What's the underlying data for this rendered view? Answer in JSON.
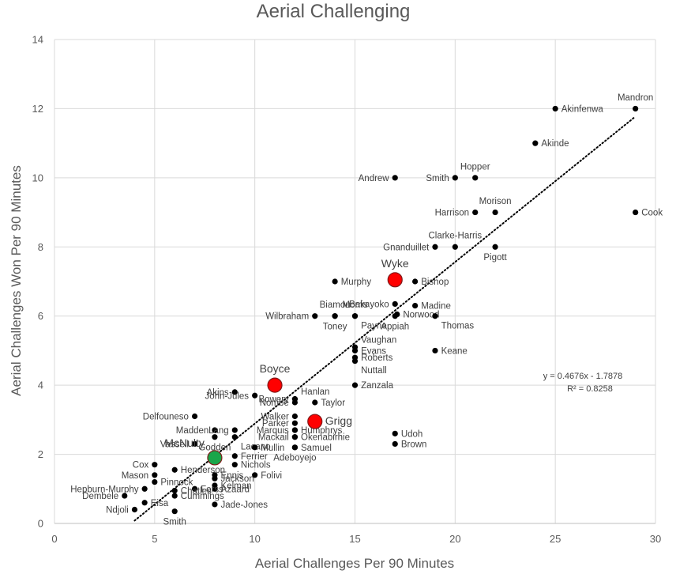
{
  "chart_data": {
    "type": "scatter",
    "title": "Aerial Challenging",
    "xlabel": "Aerial Challenges Per 90 Minutes",
    "ylabel": "Aerial Challenges Won Per 90 Minutes",
    "xlim": [
      0,
      30
    ],
    "ylim": [
      0,
      14
    ],
    "xticks": [
      "0",
      "5",
      "10",
      "15",
      "20",
      "25",
      "30"
    ],
    "yticks": [
      "0",
      "2",
      "4",
      "6",
      "8",
      "10",
      "12",
      "14"
    ],
    "grid": true,
    "trendline": {
      "slope": 0.4676,
      "intercept": -1.7878,
      "x_range": [
        4,
        29
      ],
      "style": "dotted"
    },
    "equation_text": "y = 0.4676x - 1.7878",
    "r2_text": "R² = 0.8258",
    "colors": {
      "point": "#000000",
      "highlight_red": "#ff0000",
      "highlight_green": "#1aa64a",
      "grid": "#d9d9d9",
      "text": "#595959"
    },
    "points": [
      {
        "name": "Mandron",
        "x": 29,
        "y": 12,
        "label": "above"
      },
      {
        "name": "Akinfenwa",
        "x": 25,
        "y": 12,
        "label": "right"
      },
      {
        "name": "Akinde",
        "x": 24,
        "y": 11,
        "label": "right"
      },
      {
        "name": "Hopper",
        "x": 21,
        "y": 10,
        "label": "above"
      },
      {
        "name": "Smith",
        "x": 20,
        "y": 10,
        "label": "left"
      },
      {
        "name": "Andrew",
        "x": 17,
        "y": 10,
        "label": "left"
      },
      {
        "name": "Morison",
        "x": 22,
        "y": 9,
        "label": "above"
      },
      {
        "name": "Harrison",
        "x": 21,
        "y": 9,
        "label": "left"
      },
      {
        "name": "Cook",
        "x": 29,
        "y": 9,
        "label": "right"
      },
      {
        "name": "Clarke-Harris",
        "x": 20,
        "y": 8,
        "label": "above"
      },
      {
        "name": "Gnanduillet",
        "x": 19,
        "y": 8,
        "label": "left"
      },
      {
        "name": "Pigott",
        "x": 22,
        "y": 8,
        "label": "below"
      },
      {
        "name": "Murphy",
        "x": 14,
        "y": 7,
        "label": "right"
      },
      {
        "name": "Bishop",
        "x": 18,
        "y": 7,
        "label": "right"
      },
      {
        "name": "Bakayoko",
        "x": 17,
        "y": 6.35,
        "label": "left"
      },
      {
        "name": "Madine",
        "x": 18,
        "y": 6.3,
        "label": "right"
      },
      {
        "name": "Norwood",
        "x": 17.1,
        "y": 6.05,
        "label": "right"
      },
      {
        "name": "Appiah",
        "x": 17,
        "y": 6.0,
        "label": "below"
      },
      {
        "name": "Thomas",
        "x": 19,
        "y": 6.0,
        "label": "below-right"
      },
      {
        "name": "Biamou",
        "x": 14,
        "y": 6.0,
        "label": "above"
      },
      {
        "name": "Morris",
        "x": 15,
        "y": 6.0,
        "label": "above"
      },
      {
        "name": "Wilbraham",
        "x": 13,
        "y": 6.0,
        "label": "left"
      },
      {
        "name": "Toney",
        "x": 14,
        "y": 6.0,
        "label": "below"
      },
      {
        "name": "Payne",
        "x": 15,
        "y": 6.0,
        "label": "below-right"
      },
      {
        "name": "Vaughan",
        "x": 15,
        "y": 5.1,
        "label": "above-right"
      },
      {
        "name": "Evans",
        "x": 15,
        "y": 5.0,
        "label": "right"
      },
      {
        "name": "Roberts",
        "x": 15,
        "y": 4.8,
        "label": "right"
      },
      {
        "name": "Nuttall",
        "x": 15,
        "y": 4.7,
        "label": "below-right"
      },
      {
        "name": "Keane",
        "x": 19,
        "y": 5.0,
        "label": "right"
      },
      {
        "name": "Zanzala",
        "x": 15,
        "y": 4.0,
        "label": "right"
      },
      {
        "name": "Akins",
        "x": 9,
        "y": 3.8,
        "label": "left"
      },
      {
        "name": "John-Jules",
        "x": 10,
        "y": 3.7,
        "label": "left"
      },
      {
        "name": "Bowery",
        "x": 12,
        "y": 3.6,
        "label": "left"
      },
      {
        "name": "Hanlan",
        "x": 12,
        "y": 3.6,
        "label": "above-right"
      },
      {
        "name": "Nombe",
        "x": 12,
        "y": 3.5,
        "label": "left"
      },
      {
        "name": "Taylor",
        "x": 13,
        "y": 3.5,
        "label": "right"
      },
      {
        "name": "Delfouneso",
        "x": 7,
        "y": 3.1,
        "label": "left"
      },
      {
        "name": "Walker",
        "x": 12,
        "y": 3.1,
        "label": "left"
      },
      {
        "name": "Parker",
        "x": 12,
        "y": 2.9,
        "label": "left"
      },
      {
        "name": "Madden",
        "x": 8,
        "y": 2.7,
        "label": "left"
      },
      {
        "name": "Lang",
        "x": 9,
        "y": 2.7,
        "label": "left"
      },
      {
        "name": "Marquis",
        "x": 12,
        "y": 2.7,
        "label": "left"
      },
      {
        "name": "Humphrys",
        "x": 12,
        "y": 2.7,
        "label": "right"
      },
      {
        "name": "Mackail",
        "x": 12,
        "y": 2.5,
        "label": "left"
      },
      {
        "name": "Okenabirhie",
        "x": 12,
        "y": 2.5,
        "label": "right"
      },
      {
        "name": "Vassell",
        "x": 7,
        "y": 2.3,
        "label": "left"
      },
      {
        "name": "Godden",
        "x": 8,
        "y": 2.5,
        "label": "below"
      },
      {
        "name": "Lacano",
        "x": 9,
        "y": 2.5,
        "label": "below-right"
      },
      {
        "name": "Mullin",
        "x": 10,
        "y": 2.2,
        "label": "right"
      },
      {
        "name": "Samuel",
        "x": 12,
        "y": 2.2,
        "label": "right"
      },
      {
        "name": "Ferrier",
        "x": 9,
        "y": 1.95,
        "label": "right"
      },
      {
        "name": "Adeboyejo",
        "x": 12,
        "y": 2.2,
        "label": "below"
      },
      {
        "name": "Nichols",
        "x": 9,
        "y": 1.7,
        "label": "right"
      },
      {
        "name": "Cox",
        "x": 5,
        "y": 1.7,
        "label": "left"
      },
      {
        "name": "Henderson",
        "x": 6,
        "y": 1.55,
        "label": "right"
      },
      {
        "name": "Mason",
        "x": 5,
        "y": 1.4,
        "label": "left"
      },
      {
        "name": "Ennis",
        "x": 8,
        "y": 1.4,
        "label": "right"
      },
      {
        "name": "Folivi",
        "x": 10,
        "y": 1.4,
        "label": "right"
      },
      {
        "name": "Jackson",
        "x": 8,
        "y": 1.3,
        "label": "right"
      },
      {
        "name": "Pinnock",
        "x": 5,
        "y": 1.2,
        "label": "right"
      },
      {
        "name": "Hepburn-Murphy",
        "x": 4.5,
        "y": 1.0,
        "label": "left"
      },
      {
        "name": "Kelman",
        "x": 8,
        "y": 1.1,
        "label": "right"
      },
      {
        "name": "Azaard",
        "x": 8,
        "y": 1.0,
        "label": "right"
      },
      {
        "name": "Forss",
        "x": 7,
        "y": 1.0,
        "label": "right"
      },
      {
        "name": "Chatles",
        "x": 6,
        "y": 0.95,
        "label": "right"
      },
      {
        "name": "Dembele",
        "x": 3.5,
        "y": 0.8,
        "label": "left"
      },
      {
        "name": "Cummings",
        "x": 6,
        "y": 0.8,
        "label": "right"
      },
      {
        "name": "Eisa",
        "x": 4.5,
        "y": 0.6,
        "label": "right"
      },
      {
        "name": "Jade-Jones",
        "x": 8,
        "y": 0.55,
        "label": "right"
      },
      {
        "name": "Ndjoli",
        "x": 4,
        "y": 0.4,
        "label": "left"
      },
      {
        "name": "Smith",
        "x": 6,
        "y": 0.35,
        "label": "below"
      },
      {
        "name": "Udoh",
        "x": 17,
        "y": 2.6,
        "label": "right"
      },
      {
        "name": "Brown",
        "x": 17,
        "y": 2.3,
        "label": "right"
      }
    ],
    "highlights": [
      {
        "name": "Wyke",
        "x": 17,
        "y": 7.05,
        "color": "red",
        "label": "above"
      },
      {
        "name": "Boyce",
        "x": 11,
        "y": 4.0,
        "color": "red",
        "label": "above"
      },
      {
        "name": "Grigg",
        "x": 13,
        "y": 2.95,
        "color": "red",
        "label": "right"
      },
      {
        "name": "McNulty",
        "x": 8,
        "y": 1.9,
        "color": "green",
        "label": "above-left"
      }
    ]
  }
}
